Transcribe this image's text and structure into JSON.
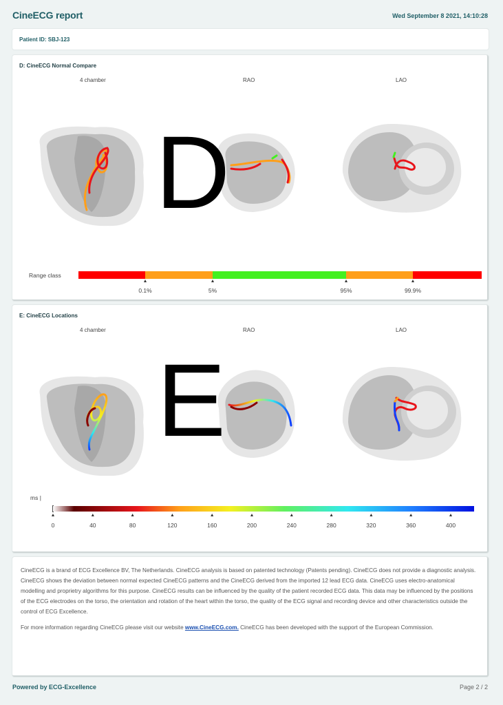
{
  "header": {
    "title": "CineECG report",
    "date": "Wed September 8 2021, 14:10:28"
  },
  "patient": {
    "label": "Patient ID:  SBJ-123"
  },
  "panel_d": {
    "title": "D:  CineECG Normal Compare",
    "views": [
      "4 chamber",
      "RAO",
      "LAO"
    ],
    "overlay_letter": "D",
    "range_label": "Range class",
    "range_ticks": [
      "0.1%",
      "5%",
      "95%",
      "99.9%"
    ],
    "range_colors": [
      "#ff0000",
      "#ff9f1a",
      "#44f020",
      "#ff9f1a",
      "#ff0000"
    ]
  },
  "panel_e": {
    "title": "E:  CineECG Locations",
    "views": [
      "4 chamber",
      "RAO",
      "LAO"
    ],
    "overlay_letter": "E",
    "unit_label": "ms |",
    "scale_ticks": [
      "0",
      "40",
      "80",
      "120",
      "160",
      "200",
      "240",
      "280",
      "320",
      "360",
      "400"
    ]
  },
  "info": {
    "paragraph1": "CineECG is a brand of ECG Excellence BV, The Netherlands. CineECG analysis is based on patented technology (Patents pending). CineECG does not provide a diagnostic analysis. CineECG shows the deviation between normal expected CineECG patterns and the CineECG derived from the imported 12 lead ECG data. CineECG uses electro-anatomical modelling and proprietry algorithms for this purpose. CineECG results can be influenced by the quality of the patient recorded ECG data. This data may be influenced by the positions of the ECG electrodes on the torso, the orientation and rotation of the heart within the torso, the quality of the ECG signal and recording device and other characteristics outside the control of ECG Excellence.",
    "paragraph2_prefix": "For more information regarding CineECG please visit our website ",
    "link_text": "www.CineECG.com.",
    "paragraph2_suffix": " CineECG has been developed with the support of the European Commission."
  },
  "footer": {
    "left": "Powered by ECG-Excellence",
    "right": "Page 2 / 2"
  }
}
